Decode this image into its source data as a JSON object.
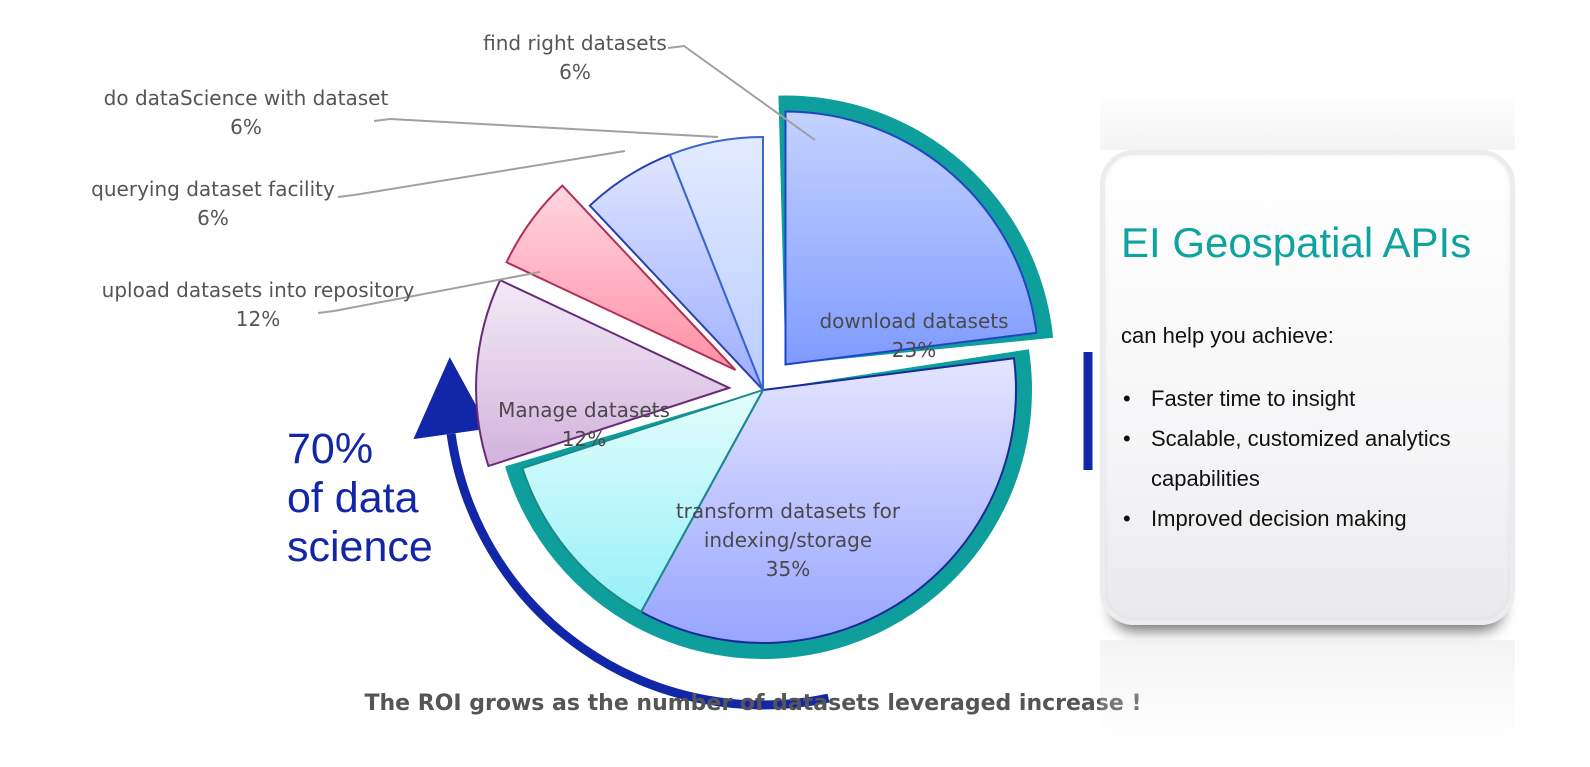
{
  "chart_data": {
    "type": "pie",
    "slices": [
      {
        "label": "download datasets",
        "value": 23,
        "value_text": "23%",
        "fill_top": "#c4d2ff",
        "fill_bottom": "#7f9bff",
        "stroke": "#1e44c8",
        "label_inside": true,
        "exploded": true
      },
      {
        "label": "transform datasets for indexing/storage",
        "label_lines": [
          "transform datasets for",
          "indexing/storage"
        ],
        "value": 35,
        "value_text": "35%",
        "fill_top": "#e5e5ff",
        "fill_bottom": "#97a5ff",
        "stroke": "#1a2a9a",
        "label_inside": true,
        "exploded": false
      },
      {
        "label": "Manage datasets",
        "value": 12,
        "value_text": "12%",
        "fill_top": "#e3fdfd",
        "fill_bottom": "#97f0f7",
        "stroke": "#1a8a8a",
        "label_inside": true,
        "exploded": false
      },
      {
        "label": "upload datasets into repository",
        "value": 12,
        "value_text": "12%",
        "fill_top": "#f3eaf6",
        "fill_bottom": "#d2b2dc",
        "stroke": "#6a2a7a",
        "label_inside": false,
        "exploded": true
      },
      {
        "label": "querying dataset facility",
        "value": 6,
        "value_text": "6%",
        "fill_top": "#ffd6df",
        "fill_bottom": "#ff8fa5",
        "stroke": "#b0305a",
        "label_inside": false,
        "exploded": true
      },
      {
        "label": "do dataScience with dataset",
        "value": 6,
        "value_text": "6%",
        "fill_top": "#dfe5ff",
        "fill_bottom": "#9cadff",
        "stroke": "#2a3fb0",
        "label_inside": false,
        "exploded": false
      },
      {
        "label": "find right datasets",
        "value": 6,
        "value_text": "6%",
        "fill_top": "#e2ebff",
        "fill_bottom": "#b9ccff",
        "stroke": "#3a66cc",
        "label_inside": false,
        "exploded": false
      }
    ],
    "ring_color": "#0e9f9c",
    "arrow_color": "#1226a8",
    "highlight_text": [
      "70%",
      "of data",
      "science"
    ],
    "caption": "The ROI grows as the number of datasets leveraged increase !"
  },
  "card": {
    "title": "EI Geospatial APIs",
    "subtitle": "can help you  achieve:",
    "bullets": [
      "Faster time to insight",
      "Scalable, customized analytics capabilities",
      "Improved decision making"
    ],
    "title_color": "#0fa3a0"
  }
}
